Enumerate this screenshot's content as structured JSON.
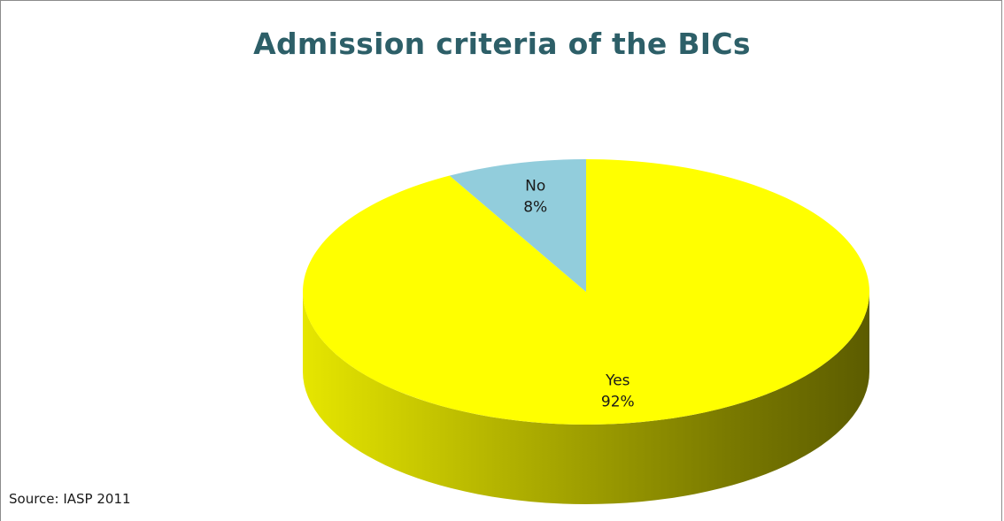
{
  "chart_data": {
    "type": "pie",
    "title": "Admission criteria of the BICs",
    "slices": [
      {
        "label": "Yes",
        "percent_label": "92%",
        "value": 92,
        "color": "#ffff00"
      },
      {
        "label": "No",
        "percent_label": "8%",
        "value": 8,
        "color": "#92cddc"
      }
    ],
    "source": "Source: IASP 2011"
  }
}
